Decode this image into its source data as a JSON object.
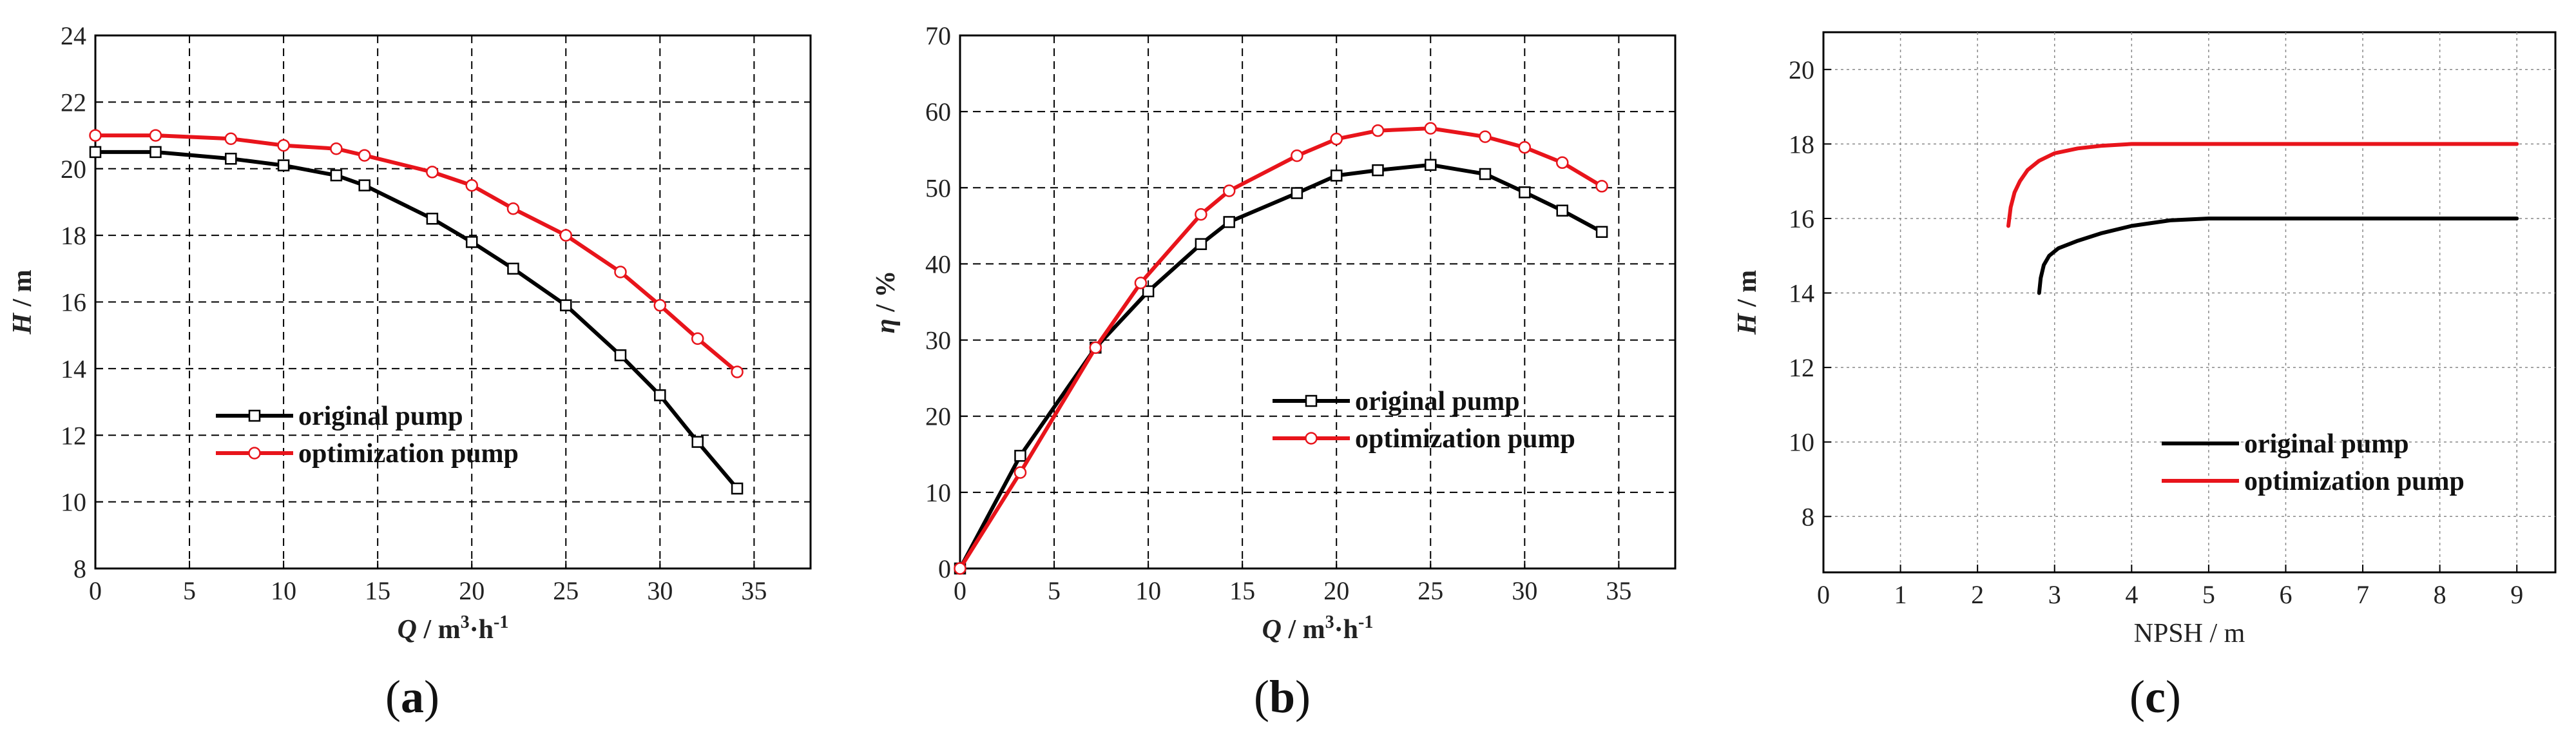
{
  "chart_data": [
    {
      "type": "line",
      "panel_label": {
        "open": "(",
        "letter": "a",
        "close": ")"
      },
      "xlabel": {
        "sym": "Q",
        "rest": " / m",
        "sup": "3",
        "tail": "·h",
        "sup2": "-1"
      },
      "ylabel": {
        "sym": "H",
        "rest": " / m"
      },
      "xlim": [
        0,
        38
      ],
      "ylim": [
        8,
        24
      ],
      "xticks": [
        0,
        5,
        10,
        15,
        20,
        25,
        30,
        35
      ],
      "yticks": [
        8,
        10,
        12,
        14,
        16,
        18,
        20,
        22,
        24
      ],
      "grid": true,
      "series": [
        {
          "name": "original pump",
          "color": "#000000",
          "marker": "square",
          "x": [
            0,
            3.2,
            7.2,
            10,
            12.8,
            14.3,
            17.9,
            20,
            22.2,
            25,
            27.9,
            30,
            32,
            34.1
          ],
          "y": [
            20.5,
            20.5,
            20.3,
            20.1,
            19.8,
            19.5,
            18.5,
            17.8,
            17.0,
            15.9,
            14.4,
            13.2,
            11.8,
            10.4
          ]
        },
        {
          "name": "optimization pump",
          "color": "#e8141b",
          "marker": "circle",
          "x": [
            0,
            3.2,
            7.2,
            10,
            12.8,
            14.3,
            17.9,
            20,
            22.2,
            25,
            27.9,
            30,
            32,
            34.1
          ],
          "y": [
            21.0,
            21.0,
            20.9,
            20.7,
            20.6,
            20.4,
            19.9,
            19.5,
            18.8,
            18.0,
            16.9,
            15.9,
            14.9,
            13.9
          ]
        }
      ]
    },
    {
      "type": "line",
      "panel_label": {
        "open": "(",
        "letter": "b",
        "close": ")"
      },
      "xlabel": {
        "sym": "Q",
        "rest": " / m",
        "sup": "3",
        "tail": "·h",
        "sup2": "-1"
      },
      "ylabel": {
        "sym": "η",
        "rest": " / %"
      },
      "xlim": [
        0,
        38
      ],
      "ylim": [
        0,
        70
      ],
      "xticks": [
        0,
        5,
        10,
        15,
        20,
        25,
        30,
        35
      ],
      "yticks": [
        0,
        10,
        20,
        30,
        40,
        50,
        60,
        70
      ],
      "grid": true,
      "series": [
        {
          "name": "original pump",
          "color": "#000000",
          "marker": "square",
          "x": [
            0,
            3.2,
            7.2,
            10,
            12.8,
            14.3,
            17.9,
            20,
            22.2,
            25,
            27.9,
            30,
            32,
            34.1
          ],
          "y": [
            0,
            14.8,
            29.0,
            36.4,
            42.6,
            45.5,
            49.3,
            51.6,
            52.3,
            53.0,
            51.8,
            49.4,
            47.0,
            44.2
          ]
        },
        {
          "name": "optimization pump",
          "color": "#e8141b",
          "marker": "circle",
          "x": [
            0,
            3.2,
            7.2,
            9.6,
            12.8,
            14.3,
            17.9,
            20,
            22.2,
            25,
            27.9,
            30,
            32,
            34.1
          ],
          "y": [
            0,
            12.6,
            29.0,
            37.5,
            46.5,
            49.6,
            54.2,
            56.4,
            57.5,
            57.8,
            56.7,
            55.3,
            53.3,
            50.2
          ]
        }
      ]
    },
    {
      "type": "line",
      "panel_label": {
        "open": "(",
        "letter": "c",
        "close": ")"
      },
      "xlabel": {
        "sym": "NPSH",
        "rest": " / m",
        "sup": "",
        "tail": "",
        "sup2": ""
      },
      "ylabel": {
        "sym": "H",
        "rest": " / m"
      },
      "xlim": [
        0,
        9.5
      ],
      "ylim": [
        6.5,
        21
      ],
      "xticks": [
        0,
        1,
        2,
        3,
        4,
        5,
        6,
        7,
        8,
        9
      ],
      "yticks": [
        8,
        10,
        12,
        14,
        16,
        18,
        20
      ],
      "grid": true,
      "series": [
        {
          "name": "original pump",
          "color": "#000000",
          "marker": "none",
          "x": [
            2.8,
            2.82,
            2.86,
            2.93,
            3.05,
            3.3,
            3.6,
            4.0,
            4.5,
            5.0,
            6,
            7,
            8,
            9
          ],
          "y": [
            14.0,
            14.4,
            14.75,
            15.0,
            15.2,
            15.4,
            15.6,
            15.8,
            15.95,
            16.0,
            16.0,
            16.0,
            16.0,
            16.0
          ]
        },
        {
          "name": "optimization pump",
          "color": "#e8141b",
          "marker": "none",
          "x": [
            2.4,
            2.43,
            2.48,
            2.55,
            2.65,
            2.8,
            3.0,
            3.3,
            3.6,
            4.0,
            5,
            6,
            7,
            8,
            9
          ],
          "y": [
            15.8,
            16.3,
            16.7,
            17.0,
            17.3,
            17.55,
            17.75,
            17.88,
            17.95,
            18.0,
            18.0,
            18.0,
            18.0,
            18.0,
            18.0
          ]
        }
      ]
    }
  ]
}
